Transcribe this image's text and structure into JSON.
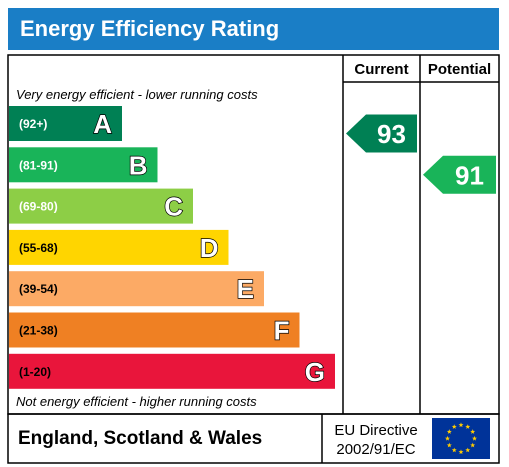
{
  "chart_data": {
    "type": "bar",
    "title": "Energy Efficiency Rating",
    "columns": {
      "current": "Current",
      "potential": "Potential"
    },
    "top_note": "Very energy efficient - lower running costs",
    "bottom_note": "Not energy efficient - higher running costs",
    "bands": [
      {
        "letter": "A",
        "range": "(92+)",
        "min": 92,
        "color": "#008054"
      },
      {
        "letter": "B",
        "range": "(81-91)",
        "min": 81,
        "color": "#19b459"
      },
      {
        "letter": "C",
        "range": "(69-80)",
        "min": 69,
        "color": "#8dce46"
      },
      {
        "letter": "D",
        "range": "(55-68)",
        "min": 55,
        "color": "#ffd500"
      },
      {
        "letter": "E",
        "range": "(39-54)",
        "min": 39,
        "color": "#fcaa65"
      },
      {
        "letter": "F",
        "range": "(21-38)",
        "min": 21,
        "color": "#ef8023"
      },
      {
        "letter": "G",
        "range": "(1-20)",
        "min": 1,
        "color": "#e9153b"
      }
    ],
    "current": {
      "value": 93,
      "label": "93",
      "color": "#008054"
    },
    "potential": {
      "value": 91,
      "label": "91",
      "color": "#19b459"
    },
    "footer": {
      "region": "England, Scotland & Wales",
      "directive_line1": "EU Directive",
      "directive_line2": "2002/91/EC"
    },
    "colors": {
      "title_bar": "#1a7ec6",
      "eu_flag": "#003399",
      "eu_stars": "#ffcc00"
    }
  }
}
